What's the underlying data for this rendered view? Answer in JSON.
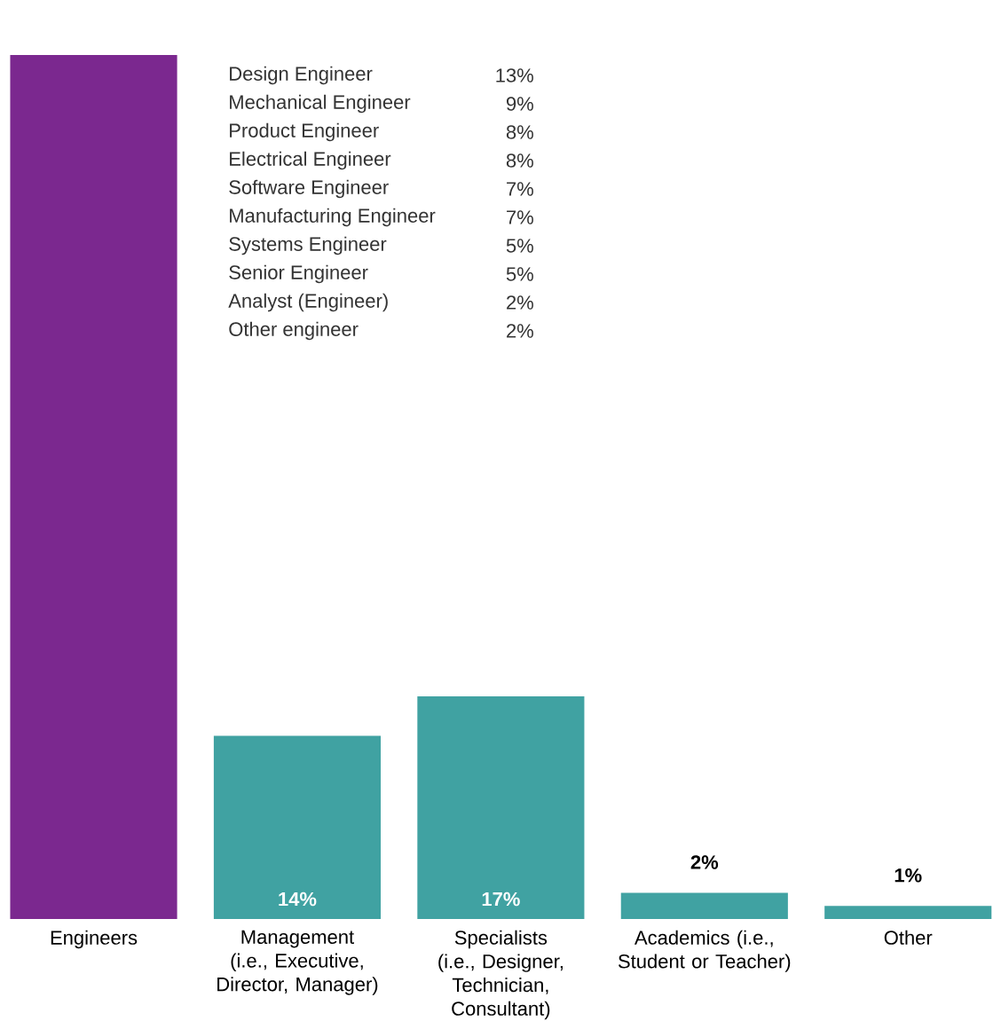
{
  "chart_data": [
    {
      "type": "bar",
      "categories": [
        "Engineers",
        "Management (i.e., Executive, Director, Manager)",
        "Specialists (i.e., Designer, Technician, Consultant)",
        "Academics (i.e., Student or Teacher)",
        "Other"
      ],
      "values": [
        66,
        14,
        17,
        2,
        1
      ],
      "colors": [
        "#7b288f",
        "#40a2a2",
        "#40a2a2",
        "#40a2a2",
        "#40a2a2"
      ],
      "value_labels": [
        null,
        "14%",
        "17%",
        "2%",
        "1%"
      ]
    },
    {
      "type": "other",
      "categories": [
        "Design Engineer",
        "Mechanical Engineer",
        "Product Engineer",
        "Electrical Engineer",
        "Software Engineer",
        "Manufacturing Engineer",
        "Systems Engineer",
        "Senior Engineer",
        "Analyst (Engineer)",
        "Other engineer"
      ],
      "values": [
        13,
        9,
        8,
        8,
        7,
        7,
        5,
        5,
        2,
        2
      ],
      "value_labels": [
        "13%",
        "9%",
        "8%",
        "8%",
        "7%",
        "7%",
        "5%",
        "5%",
        "2%",
        "2%"
      ]
    }
  ]
}
